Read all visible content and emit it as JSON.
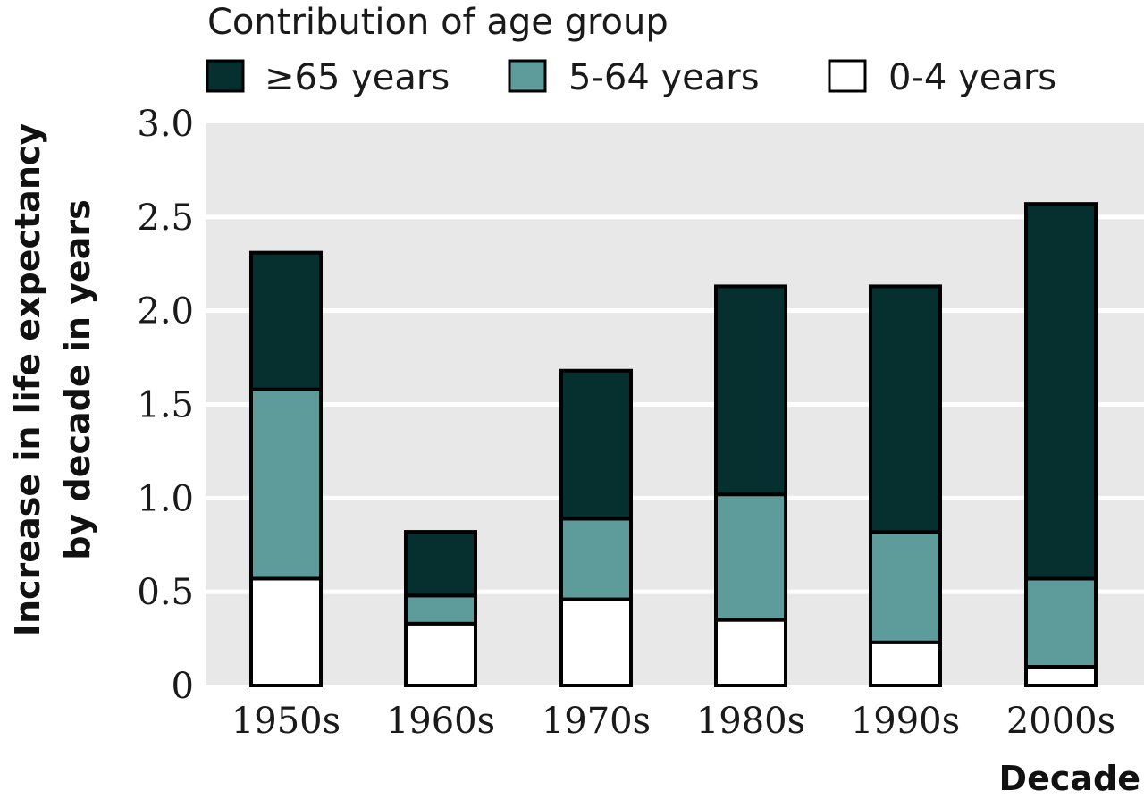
{
  "chart_data": {
    "type": "bar",
    "stacked": true,
    "categories": [
      "1950s",
      "1960s",
      "1970s",
      "1980s",
      "1990s",
      "2000s"
    ],
    "series": [
      {
        "name": "0-4 years",
        "color": "#ffffff",
        "values": [
          0.57,
          0.33,
          0.46,
          0.35,
          0.23,
          0.1
        ]
      },
      {
        "name": "5-64 years",
        "color": "#5e9b9b",
        "values": [
          1.01,
          0.15,
          0.43,
          0.67,
          0.59,
          0.47
        ]
      },
      {
        "name": "≥65 years",
        "color": "#05302f",
        "values": [
          0.73,
          0.34,
          0.79,
          1.11,
          1.31,
          2.0
        ]
      }
    ],
    "legend": {
      "title": "Contribution of age group",
      "order": [
        "≥65 years",
        "5-64 years",
        "0-4 years"
      ],
      "placement": "top"
    },
    "xlabel": "Decade",
    "ylabel_line1": "Increase in life expectancy",
    "ylabel_line2": "by decade in years",
    "ylim": [
      0,
      3.0
    ],
    "yticks": [
      0,
      0.5,
      1.0,
      1.5,
      2.0,
      2.5,
      3.0
    ],
    "ytick_labels": [
      "0",
      "0.5",
      "1.0",
      "1.5",
      "2.0",
      "2.5",
      "3.0"
    ],
    "grid": true,
    "colors": {
      "plot_background": "#e8e8e8",
      "gridline": "#ffffff",
      "bar_outline": "#000000"
    }
  }
}
